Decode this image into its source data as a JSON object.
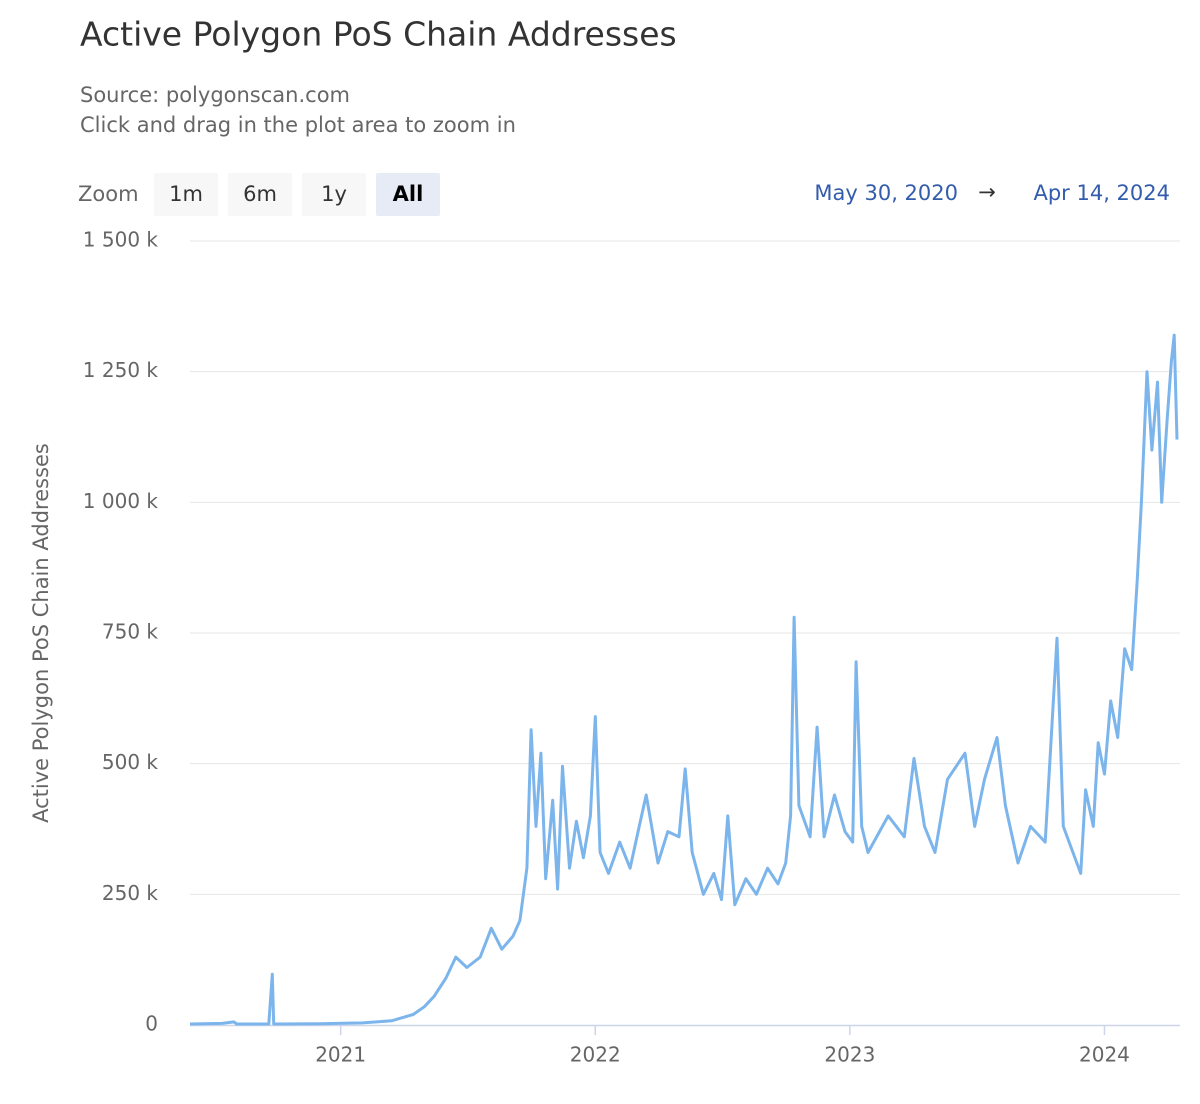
{
  "chart_data": {
    "type": "line",
    "title": "Active Polygon PoS Chain Addresses",
    "subtitle": "Source: polygonscan.com",
    "caption": "Click and drag in the plot area to zoom in",
    "zoom_label": "Zoom",
    "zoom_buttons": [
      "1m",
      "6m",
      "1y",
      "All"
    ],
    "zoom_selected": "All",
    "range_from": "May 30, 2020",
    "range_separator": "→",
    "range_to": "Apr 14, 2024",
    "y_label": "Active Polygon PoS Chain Addresses",
    "color": "#7cb5ec",
    "grid": true,
    "xlim": [
      "2020-05-30",
      "2024-04-14"
    ],
    "xticks": [
      {
        "value": "2021-01-01",
        "label": "2021"
      },
      {
        "value": "2022-01-01",
        "label": "2022"
      },
      {
        "value": "2023-01-01",
        "label": "2023"
      },
      {
        "value": "2024-01-01",
        "label": "2024"
      }
    ],
    "ylim": [
      0,
      1500000
    ],
    "yticks": [
      0,
      {
        "value": 250000,
        "label": "250 k"
      },
      {
        "value": 500000,
        "label": "500 k"
      },
      {
        "value": 750000,
        "label": "750 k"
      },
      {
        "value": 1000000,
        "label": "1 000 k"
      },
      {
        "value": 1250000,
        "label": "1 250 k"
      },
      {
        "value": 1500000,
        "label": "1 500 k"
      }
    ],
    "x": [
      "2020-05-30",
      "2020-07-15",
      "2020-08-01",
      "2020-08-05",
      "2020-09-20",
      "2020-09-25",
      "2020-09-27",
      "2020-12-01",
      "2021-02-01",
      "2021-03-15",
      "2021-04-15",
      "2021-05-01",
      "2021-05-15",
      "2021-06-01",
      "2021-06-15",
      "2021-07-01",
      "2021-07-20",
      "2021-08-05",
      "2021-08-20",
      "2021-09-05",
      "2021-09-15",
      "2021-09-25",
      "2021-10-01",
      "2021-10-08",
      "2021-10-15",
      "2021-10-22",
      "2021-11-01",
      "2021-11-08",
      "2021-11-15",
      "2021-11-25",
      "2021-12-05",
      "2021-12-15",
      "2021-12-25",
      "2022-01-01",
      "2022-01-08",
      "2022-01-20",
      "2022-02-05",
      "2022-02-20",
      "2022-03-05",
      "2022-03-15",
      "2022-04-01",
      "2022-04-15",
      "2022-05-01",
      "2022-05-10",
      "2022-05-20",
      "2022-06-05",
      "2022-06-20",
      "2022-07-01",
      "2022-07-10",
      "2022-07-20",
      "2022-08-05",
      "2022-08-20",
      "2022-09-05",
      "2022-09-20",
      "2022-10-01",
      "2022-10-08",
      "2022-10-13",
      "2022-10-20",
      "2022-11-05",
      "2022-11-15",
      "2022-11-25",
      "2022-12-10",
      "2022-12-25",
      "2023-01-05",
      "2023-01-10",
      "2023-01-18",
      "2023-01-27",
      "2023-02-25",
      "2023-03-20",
      "2023-04-03",
      "2023-04-18",
      "2023-05-03",
      "2023-05-21",
      "2023-06-15",
      "2023-06-29",
      "2023-07-13",
      "2023-07-31",
      "2023-08-12",
      "2023-08-30",
      "2023-09-17",
      "2023-10-08",
      "2023-10-25",
      "2023-11-03",
      "2023-11-28",
      "2023-12-05",
      "2023-12-16",
      "2023-12-23",
      "2024-01-01",
      "2024-01-10",
      "2024-01-20",
      "2024-01-30",
      "2024-02-09",
      "2024-02-17",
      "2024-02-23",
      "2024-03-02",
      "2024-03-09",
      "2024-03-17",
      "2024-03-23",
      "2024-03-31",
      "2024-04-06",
      "2024-04-10",
      "2024-04-14"
    ],
    "values": [
      2000,
      3000,
      6000,
      2000,
      2000,
      97000,
      2000,
      2500,
      4000,
      8000,
      20000,
      35000,
      55000,
      90000,
      130000,
      110000,
      130000,
      185000,
      145000,
      170000,
      200000,
      300000,
      565000,
      380000,
      520000,
      280000,
      430000,
      260000,
      495000,
      300000,
      390000,
      320000,
      400000,
      590000,
      330000,
      290000,
      350000,
      300000,
      380000,
      440000,
      310000,
      370000,
      360000,
      490000,
      330000,
      250000,
      290000,
      240000,
      400000,
      230000,
      280000,
      250000,
      300000,
      270000,
      310000,
      400000,
      780000,
      420000,
      360000,
      570000,
      360000,
      440000,
      370000,
      350000,
      695000,
      380000,
      330000,
      400000,
      360000,
      510000,
      380000,
      330000,
      470000,
      520000,
      380000,
      470000,
      550000,
      420000,
      310000,
      380000,
      350000,
      740000,
      380000,
      290000,
      450000,
      380000,
      540000,
      480000,
      620000,
      550000,
      720000,
      680000,
      850000,
      1000000,
      1250000,
      1100000,
      1230000,
      1000000,
      1160000,
      1270000,
      1320000,
      1120000
    ]
  }
}
